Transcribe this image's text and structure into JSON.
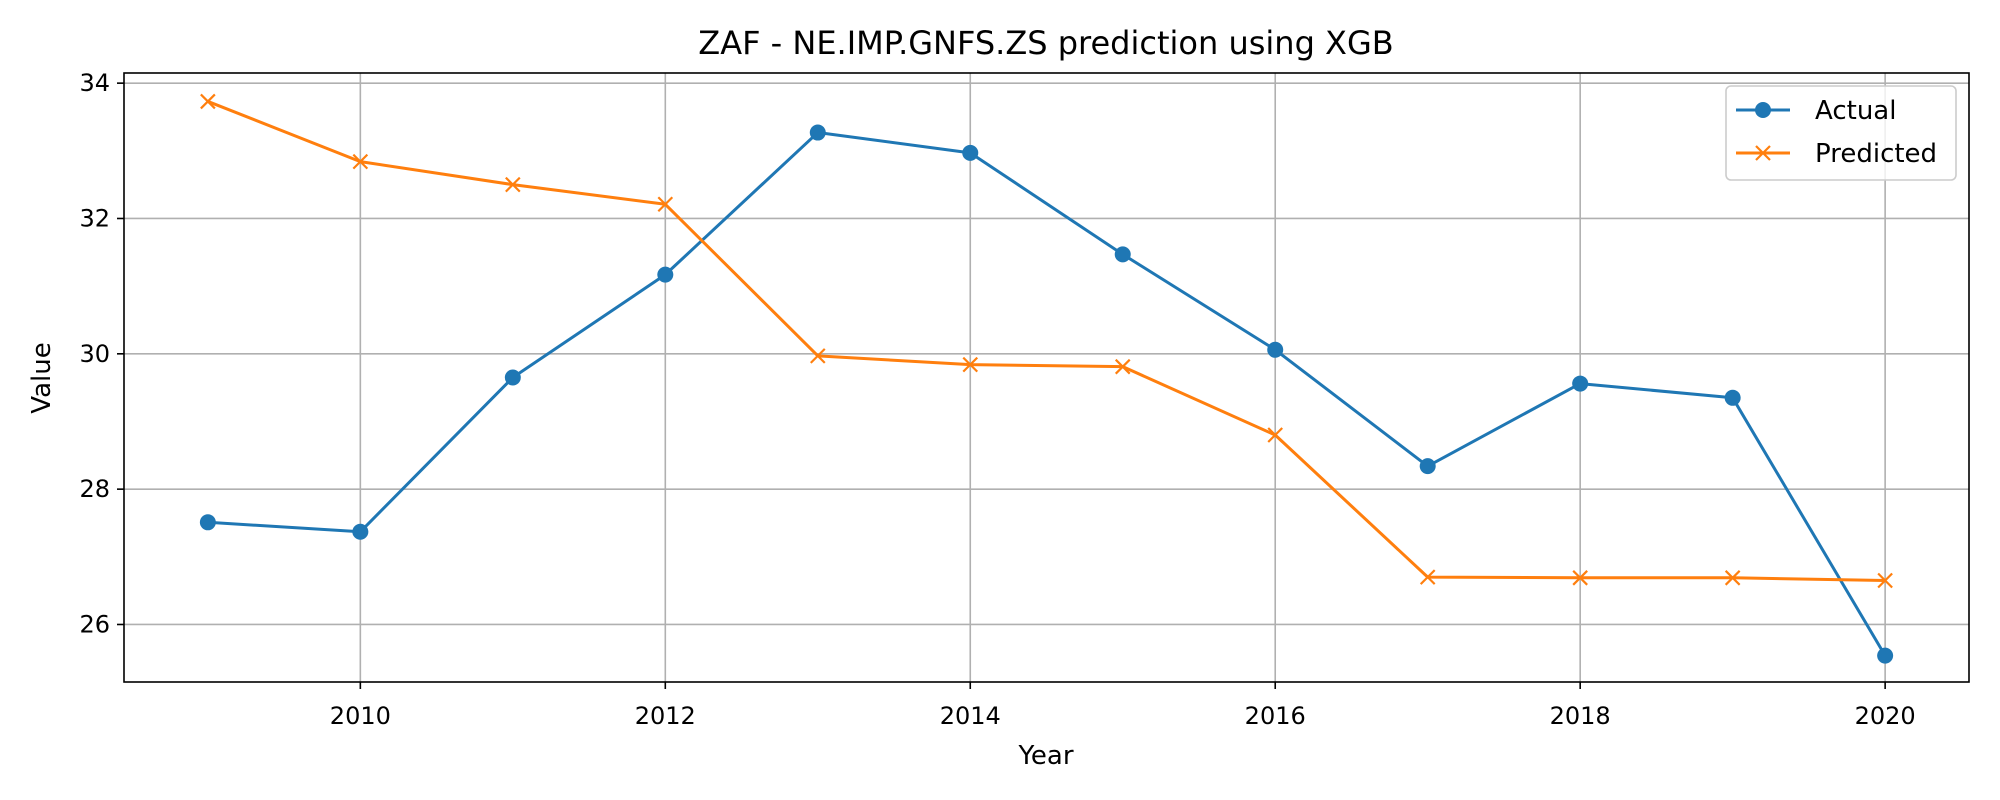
{
  "chart_data": {
    "type": "line",
    "title": "ZAF - NE.IMP.GNFS.ZS prediction using XGB",
    "xlabel": "Year",
    "ylabel": "Value",
    "x": [
      2009,
      2010,
      2011,
      2012,
      2013,
      2014,
      2015,
      2016,
      2017,
      2018,
      2019,
      2020
    ],
    "xlim": [
      2008.45,
      2020.55
    ],
    "ylim": [
      25.15,
      34.15
    ],
    "xticks": [
      2010,
      2012,
      2014,
      2016,
      2018,
      2020
    ],
    "yticks": [
      26,
      28,
      30,
      32,
      34
    ],
    "grid": true,
    "legend": "top-right",
    "series": [
      {
        "name": "Actual",
        "color": "#1f77b4",
        "marker": "circle",
        "values": [
          27.51,
          27.37,
          29.65,
          31.17,
          33.27,
          32.97,
          31.47,
          30.06,
          28.34,
          29.56,
          29.35,
          25.54
        ]
      },
      {
        "name": "Predicted",
        "color": "#ff7f0e",
        "marker": "x",
        "values": [
          33.73,
          32.84,
          32.5,
          32.21,
          29.97,
          29.84,
          29.81,
          28.8,
          26.7,
          26.69,
          26.69,
          26.65
        ]
      }
    ]
  }
}
